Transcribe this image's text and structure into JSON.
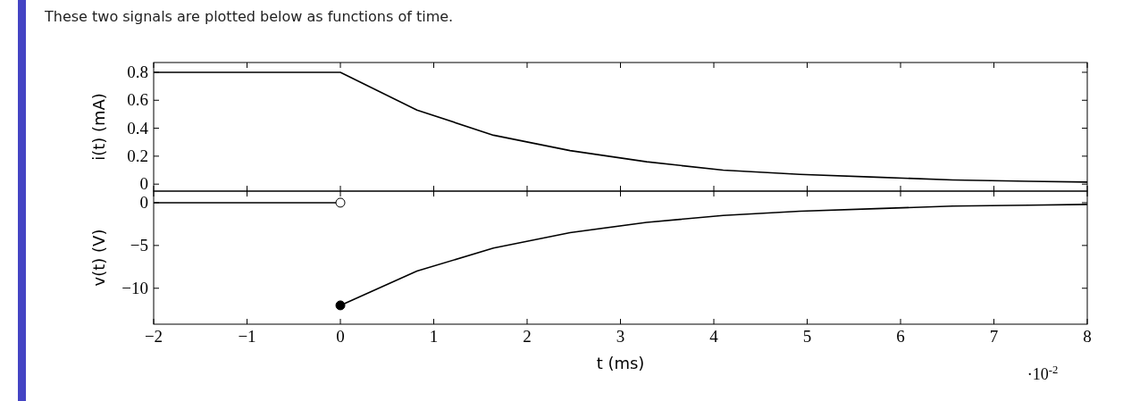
{
  "chart_data": [
    {
      "type": "line",
      "title": "These two signals are plotted below as functions of time.",
      "ylabel": "i(t) (mA)",
      "xlim": [
        -2,
        8
      ],
      "xticks": [
        -2,
        -1,
        0,
        1,
        2,
        3,
        4,
        5,
        6,
        7,
        8
      ],
      "ylim": [
        -0.05,
        0.87
      ],
      "yticks": [
        0,
        0.2,
        0.4,
        0.6,
        0.8
      ],
      "tick_labels": "y",
      "grid": false,
      "series": [
        {
          "color": "#000000",
          "x": [
            -2,
            0,
            0.82,
            1.64,
            2.46,
            3.28,
            4.1,
            4.92,
            5.74,
            6.56,
            7.38,
            8
          ],
          "values": [
            0.8,
            0.8,
            0.53,
            0.35,
            0.24,
            0.16,
            0.1,
            0.07,
            0.05,
            0.03,
            0.02,
            0.015
          ]
        }
      ]
    },
    {
      "type": "line",
      "xlabel": "t (ms)",
      "ylabel": "v(t) (V)",
      "xlim": [
        -2,
        8
      ],
      "xticks": [
        {
          "value": -2,
          "label": "−2"
        },
        {
          "value": -1,
          "label": "−1"
        },
        0,
        1,
        2,
        3,
        4,
        5,
        6,
        7,
        8
      ],
      "ylim": [
        -14.2,
        1.35
      ],
      "yticks": [
        {
          "value": -10,
          "label": "−10"
        },
        {
          "value": -5,
          "label": "−5"
        },
        0
      ],
      "grid": false,
      "annotations": [
        "·10$^{-2}$"
      ],
      "series": [
        {
          "color": "#000000",
          "x": [
            -2,
            0
          ],
          "values": [
            0,
            0
          ]
        },
        {
          "color": "#000000",
          "x": [
            0,
            0.82,
            1.64,
            2.46,
            3.28,
            4.1,
            4.92,
            5.74,
            6.56,
            7.38,
            8
          ],
          "values": [
            -12,
            -8,
            -5.3,
            -3.5,
            -2.3,
            -1.5,
            -1.0,
            -0.7,
            -0.4,
            -0.3,
            -0.2
          ]
        },
        {
          "type": "scatter",
          "color": "#ffffff",
          "marker": "circle",
          "x": [
            0
          ],
          "values": [
            0
          ]
        },
        {
          "type": "scatter",
          "color": "#000000",
          "marker": "circle",
          "x": [
            0
          ],
          "values": [
            -12
          ]
        }
      ]
    }
  ]
}
